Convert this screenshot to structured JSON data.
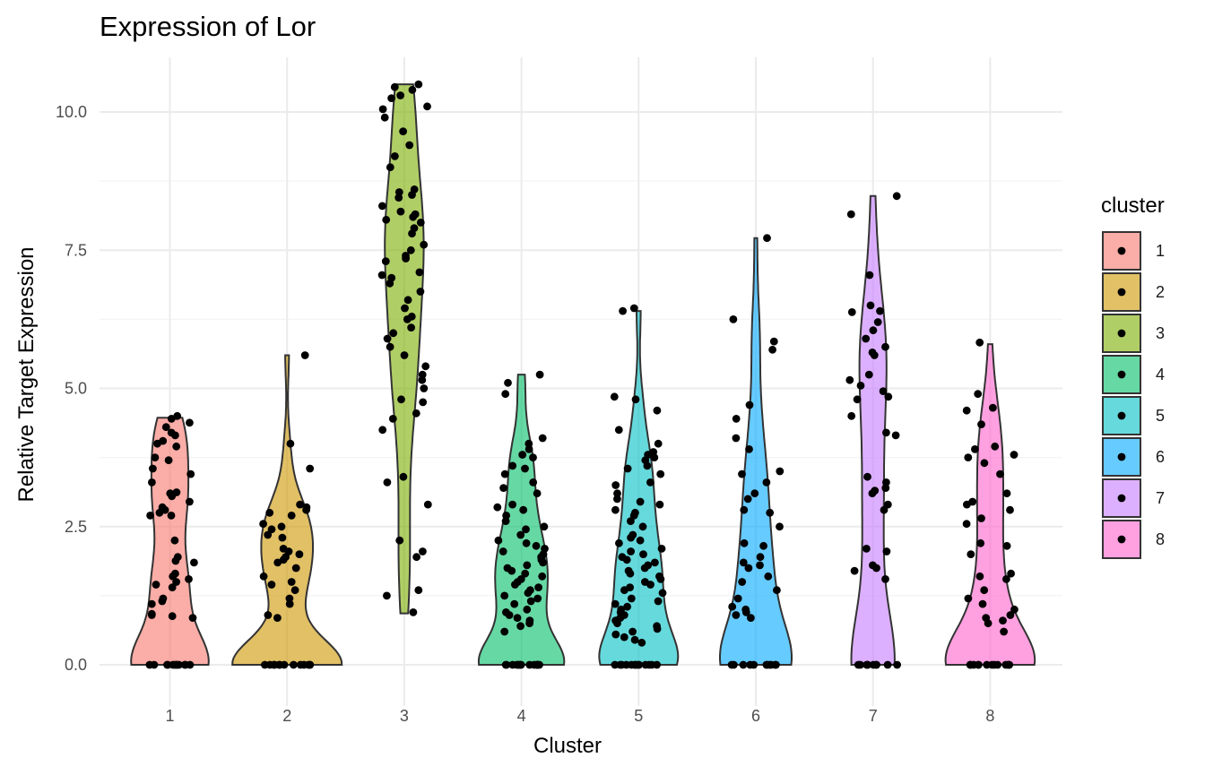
{
  "chart_data": {
    "type": "violin",
    "title": "Expression of Lor",
    "xlabel": "Cluster",
    "ylabel": "Relative Target Expression",
    "categories": [
      "1",
      "2",
      "3",
      "4",
      "5",
      "6",
      "7",
      "8"
    ],
    "ylim": [
      -0.9,
      10.85
    ],
    "yticks": [
      0.0,
      2.5,
      5.0,
      7.5,
      10.0
    ],
    "ytick_labels": [
      "0.0",
      "2.5",
      "5.0",
      "7.5",
      "10.0"
    ],
    "grid": true,
    "legend": {
      "title": "cluster",
      "position": "right",
      "entries": [
        "1",
        "2",
        "3",
        "4",
        "5",
        "6",
        "7",
        "8"
      ]
    },
    "series": [
      {
        "name": "1",
        "color": "#F8766D",
        "max": 4.47,
        "zero_count": 12,
        "points": [
          4.45,
          4.38,
          4.15,
          4.2,
          4.5,
          4.3,
          4.0,
          4.05,
          3.95,
          3.75,
          3.55,
          3.7,
          3.45,
          3.3,
          3.1,
          3.12,
          3.05,
          2.95,
          2.75,
          2.8,
          2.85,
          2.7,
          2.25,
          1.95,
          1.88,
          1.65,
          1.6,
          1.55,
          1.5,
          1.45,
          1.4,
          1.2,
          1.15,
          1.1,
          0.92,
          0.9,
          0.88,
          0.85,
          1.85,
          2.7
        ]
      },
      {
        "name": "2",
        "color": "#CD9600",
        "max": 5.6,
        "zero_count": 13,
        "points": [
          5.6,
          4.0,
          3.55,
          2.9,
          2.8,
          2.75,
          2.7,
          2.55,
          2.5,
          2.45,
          2.3,
          2.1,
          2.05,
          2.0,
          1.9,
          1.85,
          1.75,
          1.6,
          1.5,
          1.35,
          1.2,
          1.1,
          0.9,
          0.85,
          2.85,
          1.95,
          1.45,
          2.35
        ]
      },
      {
        "name": "3",
        "color": "#7CAE00",
        "min": 0.93,
        "max": 10.5,
        "zero_count": 0,
        "points": [
          10.5,
          10.45,
          10.4,
          10.3,
          10.25,
          10.1,
          10.05,
          9.9,
          9.65,
          9.4,
          9.2,
          9.0,
          8.6,
          8.55,
          8.5,
          8.45,
          8.3,
          8.2,
          8.15,
          8.1,
          8.05,
          8.0,
          7.9,
          7.8,
          7.6,
          7.5,
          7.4,
          7.35,
          7.3,
          7.1,
          7.05,
          7.0,
          6.9,
          6.75,
          6.6,
          6.45,
          6.3,
          6.25,
          6.1,
          6.0,
          5.9,
          5.75,
          5.6,
          5.4,
          5.25,
          5.15,
          5.0,
          4.8,
          4.75,
          4.55,
          4.45,
          4.25,
          3.4,
          3.3,
          2.9,
          2.25,
          2.05,
          1.95,
          1.35,
          1.25,
          0.95
        ]
      },
      {
        "name": "4",
        "color": "#00BE67",
        "max": 5.25,
        "zero_count": 15,
        "points": [
          5.25,
          5.1,
          4.9,
          4.1,
          4.0,
          3.9,
          3.8,
          3.75,
          3.6,
          3.55,
          3.45,
          3.3,
          3.2,
          3.1,
          2.9,
          2.85,
          2.8,
          2.7,
          2.6,
          2.5,
          2.45,
          2.35,
          2.25,
          2.2,
          2.15,
          2.1,
          2.05,
          2.0,
          1.95,
          1.9,
          1.85,
          1.8,
          1.75,
          1.7,
          1.65,
          1.6,
          1.55,
          1.5,
          1.45,
          1.4,
          1.35,
          1.3,
          1.25,
          1.2,
          1.15,
          1.1,
          1.0,
          0.95,
          0.9,
          0.85,
          0.8,
          0.75,
          0.7,
          0.6
        ]
      },
      {
        "name": "5",
        "color": "#00BFC4",
        "max": 6.4,
        "zero_count": 14,
        "points": [
          6.45,
          6.4,
          4.85,
          4.8,
          4.6,
          4.25,
          4.0,
          3.85,
          3.8,
          3.75,
          3.7,
          3.6,
          3.55,
          3.45,
          3.3,
          3.25,
          3.1,
          3.0,
          2.95,
          2.9,
          2.8,
          2.75,
          2.7,
          2.6,
          2.5,
          2.35,
          2.3,
          2.25,
          2.2,
          2.1,
          2.05,
          2.0,
          1.95,
          1.9,
          1.85,
          1.8,
          1.75,
          1.7,
          1.65,
          1.6,
          1.55,
          1.5,
          1.45,
          1.4,
          1.35,
          1.3,
          1.2,
          1.15,
          1.1,
          1.05,
          1.0,
          0.95,
          0.9,
          0.85,
          0.8,
          0.75,
          0.7,
          0.65,
          0.6,
          0.55,
          0.5,
          0.45,
          0.4
        ]
      },
      {
        "name": "6",
        "color": "#00A9FF",
        "max": 7.72,
        "zero_count": 11,
        "points": [
          7.72,
          6.25,
          5.85,
          5.7,
          4.7,
          4.45,
          4.1,
          3.9,
          3.5,
          3.45,
          3.3,
          3.1,
          3.0,
          2.8,
          2.75,
          2.5,
          2.2,
          2.15,
          1.95,
          1.85,
          1.8,
          1.75,
          1.6,
          1.5,
          1.35,
          1.2,
          1.05,
          1.0,
          0.95,
          0.9,
          0.85
        ]
      },
      {
        "name": "7",
        "color": "#C77CFF",
        "max": 8.48,
        "zero_count": 10,
        "points": [
          8.48,
          8.15,
          7.05,
          6.5,
          6.4,
          6.38,
          6.2,
          6.05,
          5.9,
          5.75,
          5.65,
          5.6,
          5.25,
          5.15,
          5.05,
          4.95,
          4.85,
          4.8,
          4.5,
          4.2,
          4.15,
          3.4,
          3.3,
          3.2,
          3.15,
          3.1,
          2.9,
          2.8,
          2.1,
          2.05,
          1.8,
          1.75,
          1.7,
          1.55
        ]
      },
      {
        "name": "8",
        "color": "#FF61CC",
        "max": 5.8,
        "zero_count": 13,
        "points": [
          5.83,
          4.9,
          4.65,
          4.6,
          4.35,
          3.95,
          3.9,
          3.8,
          3.75,
          3.65,
          3.45,
          3.1,
          2.95,
          2.9,
          2.8,
          2.65,
          2.55,
          2.2,
          2.15,
          2.0,
          1.65,
          1.6,
          1.55,
          1.35,
          1.2,
          1.1,
          1.0,
          0.9,
          0.85,
          0.8,
          0.75,
          0.6
        ]
      }
    ]
  }
}
